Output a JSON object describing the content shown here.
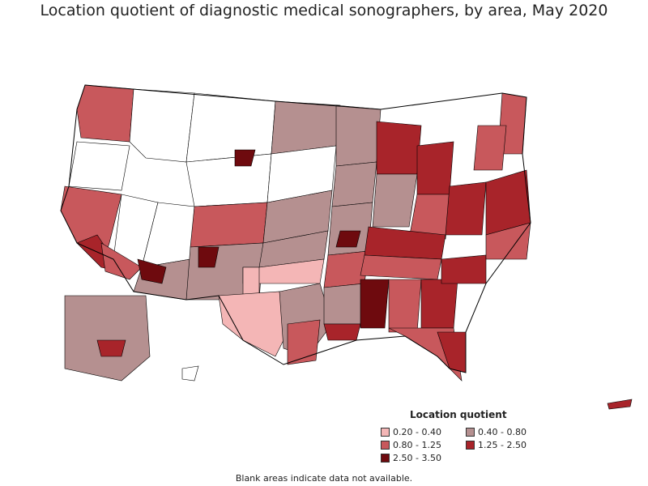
{
  "title": "Location quotient of diagnostic medical sonographers, by area, May 2020",
  "legend": {
    "title": "Location quotient",
    "items": [
      {
        "label": "0.20 - 0.40",
        "color": "#f4b6b6"
      },
      {
        "label": "0.40 - 0.80",
        "color": "#b59090"
      },
      {
        "label": "0.80 - 1.25",
        "color": "#c8585c"
      },
      {
        "label": "1.25 - 2.50",
        "color": "#a8242a"
      },
      {
        "label": "2.50 - 3.50",
        "color": "#6e0a0e"
      }
    ]
  },
  "footnote": "Blank areas indicate data not available.",
  "colors": {
    "no_data": "#ffffff",
    "border": "#000000"
  }
}
